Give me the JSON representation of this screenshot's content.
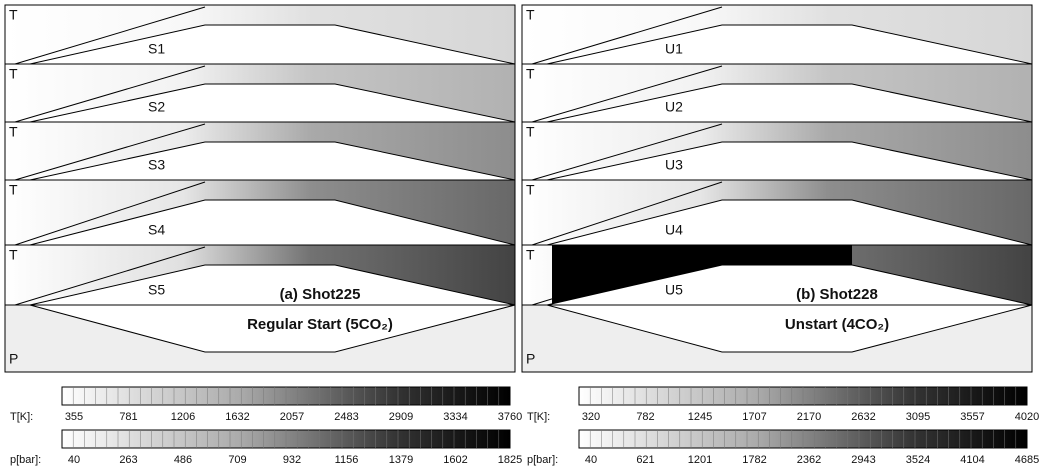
{
  "panels": [
    {
      "title": "(a) Shot225",
      "subtitle": "Regular Start (5CO₂)",
      "strips": [
        {
          "field": "T",
          "label": "S1"
        },
        {
          "field": "T",
          "label": "S2"
        },
        {
          "field": "T",
          "label": "S3"
        },
        {
          "field": "T",
          "label": "S4"
        },
        {
          "field": "T",
          "label": "S5"
        }
      ],
      "p_field": "P",
      "colorbars": [
        {
          "label": "T[K]:",
          "ticks": [
            355,
            781,
            1206,
            1632,
            2057,
            2483,
            2909,
            3334,
            3760
          ]
        },
        {
          "label": "p[bar]:",
          "ticks": [
            40,
            263,
            486,
            709,
            932,
            1156,
            1379,
            1602,
            1825
          ]
        }
      ]
    },
    {
      "title": "(b) Shot228",
      "subtitle": "Unstart (4CO₂)",
      "strips": [
        {
          "field": "T",
          "label": "U1"
        },
        {
          "field": "T",
          "label": "U2"
        },
        {
          "field": "T",
          "label": "U3"
        },
        {
          "field": "T",
          "label": "U4"
        },
        {
          "field": "T",
          "label": "U5"
        }
      ],
      "p_field": "P",
      "colorbars": [
        {
          "label": "T[K]:",
          "ticks": [
            320,
            782,
            1245,
            1707,
            2170,
            2632,
            3095,
            3557,
            4020
          ]
        },
        {
          "label": "p[bar]:",
          "ticks": [
            40,
            621,
            1201,
            1782,
            2362,
            2943,
            3524,
            4104,
            4685
          ]
        }
      ]
    }
  ]
}
